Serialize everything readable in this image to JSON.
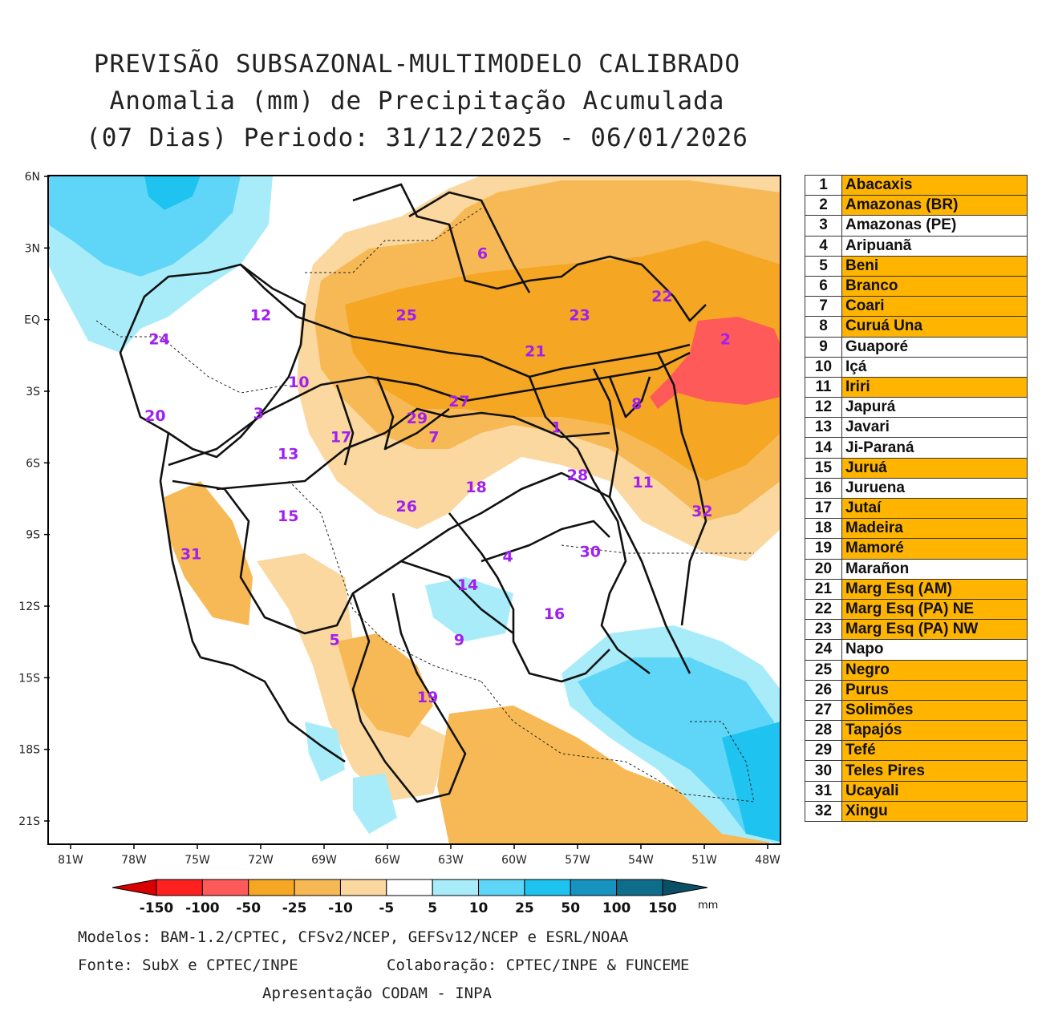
{
  "title": {
    "line1": "PREVISÃO SUBSAZONAL-MULTIMODELO CALIBRADO",
    "line2": "Anomalia (mm) de Precipitação Acumulada",
    "line3": "(07 Dias) Periodo: 31/12/2025 - 06/01/2026"
  },
  "map": {
    "lat_labels": [
      "6N",
      "3N",
      "EQ",
      "3S",
      "6S",
      "9S",
      "12S",
      "15S",
      "18S",
      "21S"
    ],
    "lon_labels": [
      "81W",
      "78W",
      "75W",
      "72W",
      "69W",
      "66W",
      "63W",
      "60W",
      "57W",
      "54W",
      "51W",
      "48W"
    ],
    "basin_labels": [
      {
        "id": "1",
        "lon": -58.0,
        "lat": -4.5
      },
      {
        "id": "2",
        "lon": -50.0,
        "lat": -0.8
      },
      {
        "id": "3",
        "lon": -72.1,
        "lat": -3.9
      },
      {
        "id": "4",
        "lon": -60.3,
        "lat": -9.9
      },
      {
        "id": "5",
        "lon": -68.5,
        "lat": -13.4
      },
      {
        "id": "6",
        "lon": -61.5,
        "lat": 2.8
      },
      {
        "id": "7",
        "lon": -63.8,
        "lat": -4.9
      },
      {
        "id": "8",
        "lon": -54.2,
        "lat": -3.5
      },
      {
        "id": "9",
        "lon": -62.6,
        "lat": -13.4
      },
      {
        "id": "10",
        "lon": -70.2,
        "lat": -2.6
      },
      {
        "id": "11",
        "lon": -53.9,
        "lat": -6.8
      },
      {
        "id": "12",
        "lon": -72.0,
        "lat": 0.2
      },
      {
        "id": "13",
        "lon": -70.7,
        "lat": -5.6
      },
      {
        "id": "14",
        "lon": -62.2,
        "lat": -11.1
      },
      {
        "id": "15",
        "lon": -70.7,
        "lat": -8.2
      },
      {
        "id": "16",
        "lon": -58.1,
        "lat": -12.3
      },
      {
        "id": "17",
        "lon": -68.2,
        "lat": -4.9
      },
      {
        "id": "18",
        "lon": -61.8,
        "lat": -7.0
      },
      {
        "id": "19",
        "lon": -64.1,
        "lat": -15.8
      },
      {
        "id": "20",
        "lon": -77.0,
        "lat": -4.0
      },
      {
        "id": "21",
        "lon": -59.0,
        "lat": -1.3
      },
      {
        "id": "22",
        "lon": -53.0,
        "lat": 1.0
      },
      {
        "id": "23",
        "lon": -56.9,
        "lat": 0.2
      },
      {
        "id": "24",
        "lon": -76.8,
        "lat": -0.8
      },
      {
        "id": "25",
        "lon": -65.1,
        "lat": 0.2
      },
      {
        "id": "26",
        "lon": -65.1,
        "lat": -7.8
      },
      {
        "id": "27",
        "lon": -62.6,
        "lat": -3.4
      },
      {
        "id": "28",
        "lon": -57.0,
        "lat": -6.5
      },
      {
        "id": "29",
        "lon": -64.6,
        "lat": -4.1
      },
      {
        "id": "30",
        "lon": -56.4,
        "lat": -9.7
      },
      {
        "id": "31",
        "lon": -75.3,
        "lat": -9.8
      },
      {
        "id": "32",
        "lon": -51.1,
        "lat": -8.0
      }
    ]
  },
  "colorbar": {
    "labels": [
      "-150",
      "-100",
      "-50",
      "-25",
      "-10",
      "-5",
      "5",
      "10",
      "25",
      "50",
      "100",
      "150"
    ],
    "unit": "mm",
    "colors": [
      "#d80000",
      "#ff2020",
      "#ff5a5a",
      "#f5a623",
      "#f7b955",
      "#fad8a0",
      "#ffffff",
      "#a8ecfa",
      "#5fd6f7",
      "#1ec3f0",
      "#1693bf",
      "#0f6d8c",
      "#0b4f66"
    ]
  },
  "legend": [
    {
      "num": "1",
      "name": "Abacaxis",
      "highlight": true
    },
    {
      "num": "2",
      "name": "Amazonas (BR)",
      "highlight": true
    },
    {
      "num": "3",
      "name": "Amazonas (PE)",
      "highlight": false
    },
    {
      "num": "4",
      "name": "Aripuanã",
      "highlight": false
    },
    {
      "num": "5",
      "name": "Beni",
      "highlight": true
    },
    {
      "num": "6",
      "name": "Branco",
      "highlight": true
    },
    {
      "num": "7",
      "name": "Coari",
      "highlight": true
    },
    {
      "num": "8",
      "name": "Curuá Una",
      "highlight": true
    },
    {
      "num": "9",
      "name": "Guaporé",
      "highlight": false
    },
    {
      "num": "10",
      "name": "Içá",
      "highlight": false
    },
    {
      "num": "11",
      "name": "Iriri",
      "highlight": true
    },
    {
      "num": "12",
      "name": "Japurá",
      "highlight": false
    },
    {
      "num": "13",
      "name": "Javari",
      "highlight": false
    },
    {
      "num": "14",
      "name": "Ji-Paraná",
      "highlight": false
    },
    {
      "num": "15",
      "name": "Juruá",
      "highlight": true
    },
    {
      "num": "16",
      "name": "Juruena",
      "highlight": false
    },
    {
      "num": "17",
      "name": "Jutaí",
      "highlight": true
    },
    {
      "num": "18",
      "name": "Madeira",
      "highlight": true
    },
    {
      "num": "19",
      "name": "Mamoré",
      "highlight": true
    },
    {
      "num": "20",
      "name": "Marañon",
      "highlight": false
    },
    {
      "num": "21",
      "name": "Marg Esq (AM)",
      "highlight": true
    },
    {
      "num": "22",
      "name": "Marg Esq (PA) NE",
      "highlight": true
    },
    {
      "num": "23",
      "name": "Marg Esq (PA) NW",
      "highlight": true
    },
    {
      "num": "24",
      "name": "Napo",
      "highlight": false
    },
    {
      "num": "25",
      "name": "Negro",
      "highlight": true
    },
    {
      "num": "26",
      "name": "Purus",
      "highlight": true
    },
    {
      "num": "27",
      "name": "Solimões",
      "highlight": true
    },
    {
      "num": "28",
      "name": "Tapajós",
      "highlight": true
    },
    {
      "num": "29",
      "name": "Tefé",
      "highlight": true
    },
    {
      "num": "30",
      "name": "Teles Pires",
      "highlight": true
    },
    {
      "num": "31",
      "name": "Ucayali",
      "highlight": true
    },
    {
      "num": "32",
      "name": "Xingu",
      "highlight": true
    }
  ],
  "colors": {
    "highlight": "#ffb400",
    "normal": "#ffffff",
    "label": "#a020f0"
  },
  "footer": {
    "line1": "Modelos: BAM-1.2/CPTEC, CFSv2/NCEP, GEFSv12/NCEP e ESRL/NOAA",
    "line2a": "Fonte: SubX e CPTEC/INPE",
    "line2b": "Colaboração: CPTEC/INPE & FUNCEME",
    "line3": "Apresentação CODAM - INPA"
  }
}
